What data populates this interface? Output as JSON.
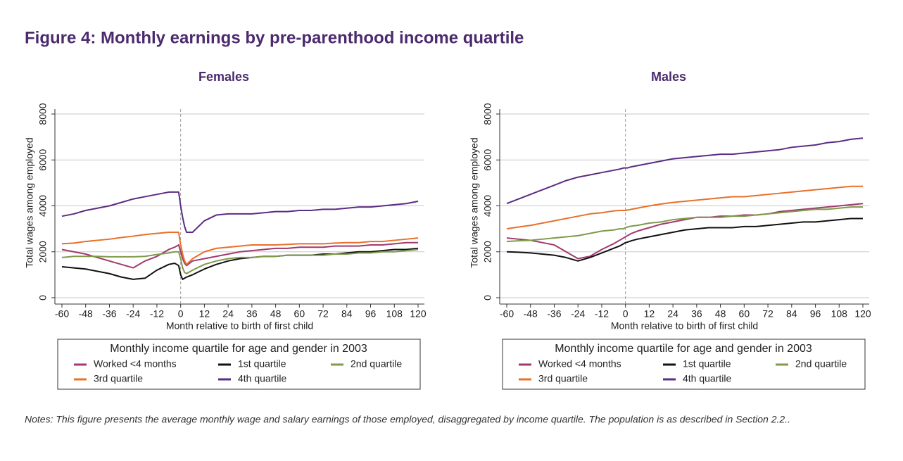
{
  "title": "Figure 4: Monthly earnings by pre-parenthood income quartile",
  "notes": "Notes: This figure presents the average monthly wage and salary earnings of those employed, disaggregated by income quartile. The population is as described in Section 2.2..",
  "chart_data": [
    {
      "type": "line",
      "title": "Females",
      "x_label": "Month relative to birth of first child",
      "y_label": "Total wages among employed",
      "legend_title": "Monthly income quartile for age and gender in 2003",
      "x": [
        -60,
        -54,
        -48,
        -42,
        -36,
        -30,
        -24,
        -18,
        -12,
        -6,
        -3,
        -1,
        0,
        1,
        2,
        3,
        6,
        12,
        18,
        24,
        30,
        36,
        42,
        48,
        54,
        60,
        66,
        72,
        78,
        84,
        90,
        96,
        102,
        108,
        114,
        120
      ],
      "xlim": [
        -60,
        120
      ],
      "xticks": [
        -60,
        -48,
        -36,
        -24,
        -12,
        0,
        12,
        24,
        36,
        48,
        60,
        72,
        84,
        96,
        108,
        120
      ],
      "ylim": [
        0,
        8000
      ],
      "yticks": [
        0,
        2000,
        4000,
        6000,
        8000
      ],
      "grid": true,
      "vline": 0,
      "series": [
        {
          "name": "Worked <4 months",
          "color": "#a03a6e",
          "values": [
            2100,
            2000,
            1900,
            1750,
            1600,
            1450,
            1300,
            1600,
            1800,
            2100,
            2200,
            2300,
            2000,
            1700,
            1500,
            1400,
            1600,
            1700,
            1800,
            1900,
            2000,
            2050,
            2100,
            2150,
            2150,
            2200,
            2200,
            2200,
            2250,
            2250,
            2250,
            2300,
            2300,
            2350,
            2400,
            2400
          ]
        },
        {
          "name": "1st quartile",
          "color": "#111111",
          "values": [
            1350,
            1300,
            1250,
            1150,
            1050,
            900,
            800,
            850,
            1200,
            1450,
            1500,
            1400,
            1000,
            800,
            850,
            900,
            1000,
            1250,
            1450,
            1600,
            1700,
            1750,
            1800,
            1800,
            1850,
            1850,
            1850,
            1900,
            1900,
            1950,
            2000,
            2000,
            2050,
            2100,
            2100,
            2150
          ]
        },
        {
          "name": "2nd quartile",
          "color": "#7f9a4a",
          "values": [
            1750,
            1800,
            1800,
            1800,
            1780,
            1780,
            1780,
            1800,
            1880,
            1950,
            2000,
            2000,
            1700,
            1300,
            1100,
            1050,
            1200,
            1450,
            1600,
            1700,
            1750,
            1750,
            1800,
            1800,
            1850,
            1850,
            1850,
            1850,
            1900,
            1900,
            1950,
            1950,
            2000,
            2000,
            2050,
            2100
          ]
        },
        {
          "name": "3rd quartile",
          "color": "#e8702a",
          "values": [
            2350,
            2380,
            2450,
            2500,
            2550,
            2620,
            2680,
            2750,
            2800,
            2850,
            2850,
            2850,
            2300,
            1900,
            1600,
            1450,
            1700,
            2000,
            2150,
            2200,
            2250,
            2300,
            2300,
            2300,
            2320,
            2350,
            2350,
            2350,
            2380,
            2400,
            2400,
            2450,
            2450,
            2500,
            2550,
            2600
          ]
        },
        {
          "name": "4th quartile",
          "color": "#5b2c83",
          "values": [
            3550,
            3650,
            3800,
            3900,
            4000,
            4150,
            4300,
            4400,
            4500,
            4600,
            4600,
            4600,
            4000,
            3500,
            3100,
            2850,
            2850,
            3350,
            3600,
            3650,
            3650,
            3650,
            3700,
            3750,
            3750,
            3800,
            3800,
            3850,
            3850,
            3900,
            3950,
            3950,
            4000,
            4050,
            4100,
            4200
          ]
        }
      ]
    },
    {
      "type": "line",
      "title": "Males",
      "x_label": "Month relative to birth of first child",
      "y_label": "Total wages among employed",
      "legend_title": "Monthly income quartile for age and gender in 2003",
      "x": [
        -60,
        -54,
        -48,
        -42,
        -36,
        -30,
        -24,
        -18,
        -12,
        -6,
        -3,
        -1,
        0,
        1,
        2,
        3,
        6,
        12,
        18,
        24,
        30,
        36,
        42,
        48,
        54,
        60,
        66,
        72,
        78,
        84,
        90,
        96,
        102,
        108,
        114,
        120
      ],
      "xlim": [
        -60,
        120
      ],
      "xticks": [
        -60,
        -48,
        -36,
        -24,
        -12,
        0,
        12,
        24,
        36,
        48,
        60,
        72,
        84,
        96,
        108,
        120
      ],
      "ylim": [
        0,
        8000
      ],
      "yticks": [
        0,
        2000,
        4000,
        6000,
        8000
      ],
      "grid": true,
      "vline": 0,
      "series": [
        {
          "name": "Worked <4 months",
          "color": "#a03a6e",
          "values": [
            2600,
            2550,
            2500,
            2400,
            2300,
            2000,
            1700,
            1800,
            2100,
            2350,
            2500,
            2600,
            2650,
            2700,
            2750,
            2800,
            2900,
            3050,
            3200,
            3300,
            3400,
            3500,
            3500,
            3550,
            3550,
            3600,
            3600,
            3650,
            3750,
            3800,
            3850,
            3900,
            3950,
            4000,
            4050,
            4100
          ]
        },
        {
          "name": "1st quartile",
          "color": "#111111",
          "values": [
            2000,
            1980,
            1950,
            1900,
            1850,
            1750,
            1600,
            1750,
            1950,
            2150,
            2250,
            2350,
            2400,
            2420,
            2450,
            2480,
            2550,
            2650,
            2750,
            2850,
            2950,
            3000,
            3050,
            3050,
            3050,
            3100,
            3100,
            3150,
            3200,
            3250,
            3300,
            3300,
            3350,
            3400,
            3450,
            3450
          ]
        },
        {
          "name": "2nd quartile",
          "color": "#7f9a4a",
          "values": [
            2450,
            2480,
            2500,
            2550,
            2600,
            2650,
            2700,
            2800,
            2900,
            2950,
            3000,
            3000,
            3050,
            3080,
            3100,
            3120,
            3150,
            3250,
            3300,
            3400,
            3450,
            3500,
            3500,
            3500,
            3550,
            3550,
            3600,
            3650,
            3700,
            3750,
            3800,
            3850,
            3850,
            3900,
            3950,
            3950
          ]
        },
        {
          "name": "3rd quartile",
          "color": "#e8702a",
          "values": [
            3000,
            3080,
            3150,
            3250,
            3350,
            3450,
            3550,
            3650,
            3700,
            3780,
            3800,
            3800,
            3800,
            3820,
            3830,
            3850,
            3900,
            4000,
            4080,
            4150,
            4200,
            4250,
            4300,
            4350,
            4400,
            4400,
            4450,
            4500,
            4550,
            4600,
            4650,
            4700,
            4750,
            4800,
            4850,
            4850
          ]
        },
        {
          "name": "4th quartile",
          "color": "#5b2c83",
          "values": [
            4100,
            4300,
            4500,
            4700,
            4900,
            5100,
            5250,
            5350,
            5450,
            5550,
            5600,
            5650,
            5650,
            5650,
            5680,
            5700,
            5750,
            5850,
            5950,
            6050,
            6100,
            6150,
            6200,
            6250,
            6250,
            6300,
            6350,
            6400,
            6450,
            6550,
            6600,
            6650,
            6750,
            6800,
            6900,
            6950
          ]
        }
      ]
    }
  ]
}
